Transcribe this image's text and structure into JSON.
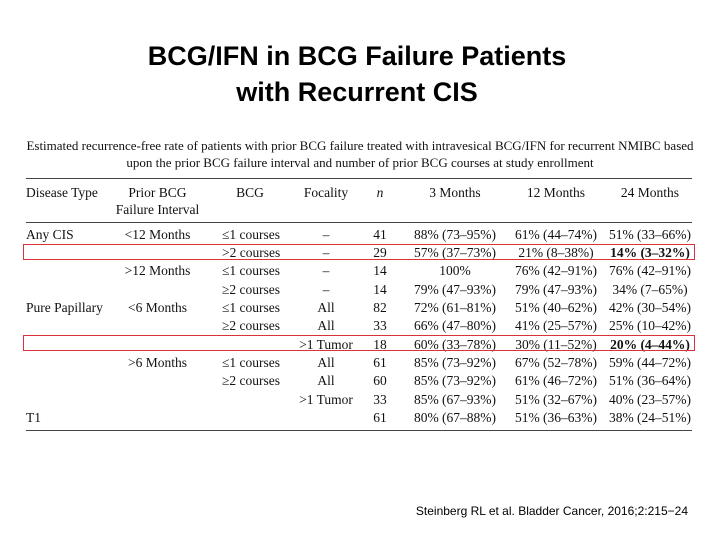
{
  "title_line1": "BCG/IFN in BCG Failure Patients",
  "title_line2": "with Recurrent CIS",
  "caption": "Estimated recurrence-free rate of patients with prior BCG failure treated with intravesical BCG/IFN for recurrent NMIBC based upon the prior BCG failure interval and number of prior BCG courses at study enrollment",
  "headers": {
    "disease_type": "Disease Type",
    "prior_bcg_1": "Prior BCG",
    "prior_bcg_2": "Failure Interval",
    "bcg": "BCG",
    "focality": "Focality",
    "n": "n",
    "m3": "3 Months",
    "m12": "12 Months",
    "m24": "24 Months"
  },
  "rows": [
    {
      "disease": "Any CIS",
      "interval": "<12 Months",
      "bcg": "≤1 courses",
      "focality": "–",
      "n": "41",
      "m3": "88% (73–95%)",
      "m12": "61% (44–74%)",
      "m24": "51% (33–66%)"
    },
    {
      "disease": "",
      "interval": "",
      "bcg": ">2 courses",
      "focality": "–",
      "n": "29",
      "m3": "57% (37–73%)",
      "m12": "21% (8–38%)",
      "m24": "14% (3–32%)"
    },
    {
      "disease": "",
      "interval": ">12 Months",
      "bcg": "≤1 courses",
      "focality": "–",
      "n": "14",
      "m3": "100%",
      "m12": "76% (42–91%)",
      "m24": "76% (42–91%)"
    },
    {
      "disease": "",
      "interval": "",
      "bcg": "≥2 courses",
      "focality": "–",
      "n": "14",
      "m3": "79% (47–93%)",
      "m12": "79% (47–93%)",
      "m24": "34% (7–65%)"
    },
    {
      "disease": "Pure Papillary",
      "interval": "<6 Months",
      "bcg": "≤1 courses",
      "focality": "All",
      "n": "82",
      "m3": "72% (61–81%)",
      "m12": "51% (40–62%)",
      "m24": "42% (30–54%)"
    },
    {
      "disease": "",
      "interval": "",
      "bcg": "≥2 courses",
      "focality": "All",
      "n": "33",
      "m3": "66% (47–80%)",
      "m12": "41% (25–57%)",
      "m24": "25% (10–42%)"
    },
    {
      "disease": "",
      "interval": "",
      "bcg": "",
      "focality": ">1 Tumor",
      "n": "18",
      "m3": "60% (33–78%)",
      "m12": "30% (11–52%)",
      "m24": "20% (4–44%)"
    },
    {
      "disease": "",
      "interval": ">6 Months",
      "bcg": "≤1 courses",
      "focality": "All",
      "n": "61",
      "m3": "85% (73–92%)",
      "m12": "67% (52–78%)",
      "m24": "59% (44–72%)"
    },
    {
      "disease": "",
      "interval": "",
      "bcg": "≥2 courses",
      "focality": "All",
      "n": "60",
      "m3": "85% (73–92%)",
      "m12": "61% (46–72%)",
      "m24": "51% (36–64%)"
    },
    {
      "disease": "",
      "interval": "",
      "bcg": "",
      "focality": ">1 Tumor",
      "n": "33",
      "m3": "85% (67–93%)",
      "m12": "51% (32–67%)",
      "m24": "40% (23–57%)"
    },
    {
      "disease": "T1",
      "interval": "",
      "bcg": "",
      "focality": "",
      "n": "61",
      "m3": "80% (67–88%)",
      "m12": "51% (36–63%)",
      "m24": "38% (24–51%)"
    }
  ],
  "citation": "Steinberg RL et al. Bladder Cancer, 2016;2:215−24",
  "colors": {
    "highlight_box": "#d9323a"
  }
}
